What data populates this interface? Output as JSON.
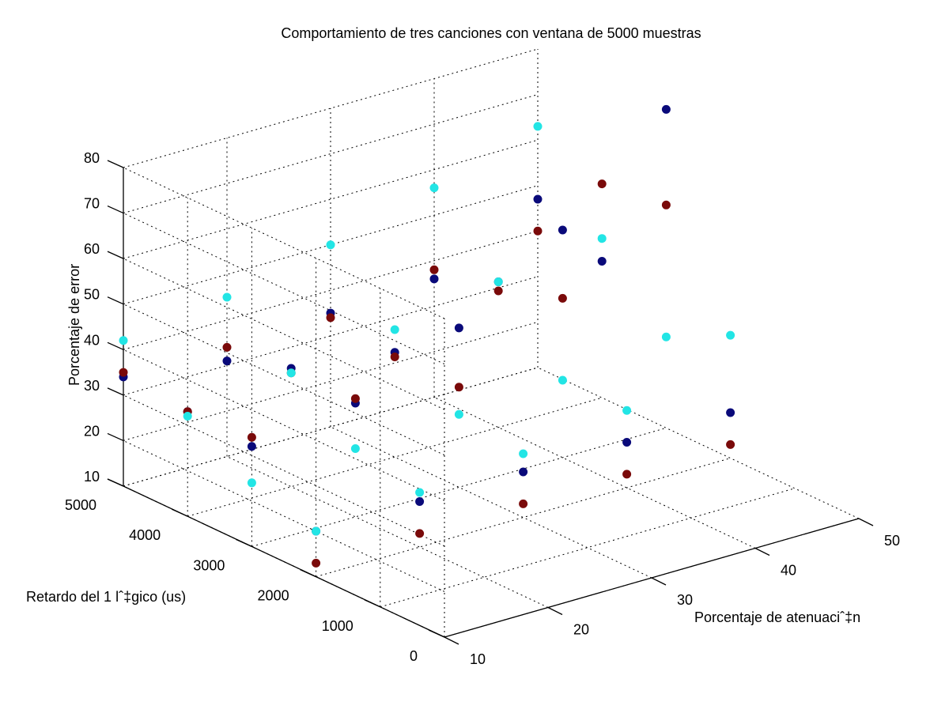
{
  "chart_data": {
    "type": "scatter",
    "projection": "3d",
    "title": "Comportamiento de tres canciones con ventana de 5000 muestras",
    "xlabel": "Porcentaje de atenuaciˆ‡n",
    "ylabel": "Retardo del 1 lˆ‡gico (us)",
    "zlabel": "Porcentaje de error",
    "xlim": [
      10,
      50
    ],
    "ylim": [
      0,
      5000
    ],
    "zlim": [
      10,
      80
    ],
    "xticks": [
      "10",
      "20",
      "30",
      "40",
      "50"
    ],
    "yticks": [
      "0",
      "1000",
      "2000",
      "3000",
      "4000",
      "5000"
    ],
    "zticks": [
      "10",
      "20",
      "30",
      "40",
      "50",
      "60",
      "70",
      "80"
    ],
    "grid": true,
    "series": [
      {
        "color": "#0a0a7a",
        "points": [
          [
            10,
            5000,
            34
          ],
          [
            20,
            5000,
            31
          ],
          [
            30,
            5000,
            35
          ],
          [
            40,
            5000,
            36
          ],
          [
            50,
            5000,
            47
          ],
          [
            10,
            4000,
            33
          ],
          [
            20,
            4000,
            36
          ],
          [
            30,
            4000,
            33
          ],
          [
            40,
            4000,
            42
          ],
          [
            50,
            4000,
            40
          ],
          [
            10,
            3000,
            32
          ],
          [
            20,
            3000,
            35
          ],
          [
            30,
            3000,
            45
          ],
          [
            40,
            3000,
            60
          ],
          [
            50,
            3000,
            80
          ],
          [
            10,
            2000,
            20
          ],
          [
            20,
            2000,
            20
          ],
          [
            30,
            2000,
            20
          ],
          [
            40,
            2000,
            20
          ],
          [
            50,
            2000,
            20
          ]
        ]
      },
      {
        "color": "#7a0a0a",
        "points": [
          [
            10,
            5000,
            35
          ],
          [
            20,
            5000,
            34
          ],
          [
            30,
            5000,
            34
          ],
          [
            40,
            5000,
            38
          ],
          [
            50,
            5000,
            40
          ],
          [
            10,
            4000,
            33
          ],
          [
            20,
            4000,
            35
          ],
          [
            30,
            4000,
            32
          ],
          [
            40,
            4000,
            40
          ],
          [
            50,
            4000,
            57
          ],
          [
            10,
            3000,
            34
          ],
          [
            20,
            3000,
            36
          ],
          [
            30,
            3000,
            32
          ],
          [
            40,
            3000,
            45
          ],
          [
            50,
            3000,
            59
          ],
          [
            10,
            2000,
            13
          ],
          [
            20,
            2000,
            13
          ],
          [
            30,
            2000,
            13
          ],
          [
            40,
            2000,
            13
          ],
          [
            50,
            2000,
            13
          ]
        ]
      },
      {
        "color": "#22e5e5",
        "points": [
          [
            10,
            5000,
            42
          ],
          [
            20,
            5000,
            45
          ],
          [
            30,
            5000,
            50
          ],
          [
            40,
            5000,
            56
          ],
          [
            50,
            5000,
            63
          ],
          [
            10,
            4000,
            32
          ],
          [
            20,
            4000,
            35
          ],
          [
            30,
            4000,
            38
          ],
          [
            40,
            4000,
            42
          ],
          [
            50,
            4000,
            45
          ],
          [
            10,
            3000,
            24
          ],
          [
            20,
            3000,
            25
          ],
          [
            30,
            3000,
            26
          ],
          [
            40,
            3000,
            27
          ],
          [
            50,
            3000,
            30
          ],
          [
            10,
            2000,
            20
          ],
          [
            20,
            2000,
            22
          ],
          [
            30,
            2000,
            24
          ],
          [
            40,
            2000,
            27
          ],
          [
            50,
            2000,
            37
          ]
        ]
      }
    ]
  }
}
